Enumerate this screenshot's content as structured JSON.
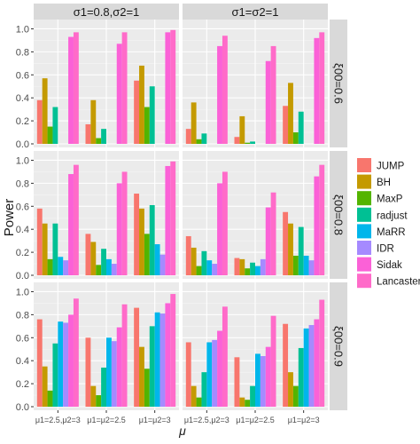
{
  "chart_data": {
    "type": "bar",
    "layout": "facet-grid",
    "ylabel": "Power",
    "xlabel": "μ",
    "categories": [
      "μ1=2.5,μ2=3",
      "μ1=μ2=2.5",
      "μ1=μ2=3"
    ],
    "y_ticks": [
      "0.0",
      "0.2",
      "0.4",
      "0.6",
      "0.8",
      "1.0"
    ],
    "ylim": [
      0,
      1.05
    ],
    "grid": true,
    "legend_position": "right",
    "col_strips": [
      "σ1=0.8,σ2=1",
      "σ1=σ2=1"
    ],
    "row_strips": [
      "ξ00=0.6",
      "ξ00=0.8",
      "ξ00=0.9"
    ],
    "methods": [
      {
        "name": "JUMP",
        "color": "#F8766D"
      },
      {
        "name": "BH",
        "color": "#C49A00"
      },
      {
        "name": "MaxP",
        "color": "#53B400"
      },
      {
        "name": "radjust",
        "color": "#00C094"
      },
      {
        "name": "MaRR",
        "color": "#00B6EB"
      },
      {
        "name": "IDR",
        "color": "#A58AFF"
      },
      {
        "name": "Sidak",
        "color": "#FB61D7"
      },
      {
        "name": "Lancaster",
        "color": "#FF6BC9"
      }
    ],
    "panels": [
      {
        "row": "ξ00=0.6",
        "col": "σ1=0.8,σ2=1",
        "values": [
          [
            0.38,
            0.57,
            0.15,
            0.32,
            0.0,
            0.0,
            0.93,
            0.97
          ],
          [
            0.17,
            0.38,
            0.05,
            0.13,
            0.0,
            0.0,
            0.87,
            0.97
          ],
          [
            0.55,
            0.68,
            0.32,
            0.5,
            0.0,
            0.0,
            0.97,
            0.99
          ]
        ]
      },
      {
        "row": "ξ00=0.6",
        "col": "σ1=σ2=1",
        "values": [
          [
            0.13,
            0.36,
            0.04,
            0.09,
            0.0,
            0.0,
            0.85,
            0.94
          ],
          [
            0.06,
            0.24,
            0.01,
            0.02,
            0.0,
            0.0,
            0.72,
            0.85
          ],
          [
            0.33,
            0.53,
            0.1,
            0.28,
            0.0,
            0.0,
            0.92,
            0.97
          ]
        ]
      },
      {
        "row": "ξ00=0.8",
        "col": "σ1=0.8,σ2=1",
        "values": [
          [
            0.58,
            0.45,
            0.14,
            0.45,
            0.16,
            0.13,
            0.88,
            0.96
          ],
          [
            0.36,
            0.29,
            0.09,
            0.23,
            0.14,
            0.1,
            0.8,
            0.9
          ],
          [
            0.71,
            0.58,
            0.36,
            0.61,
            0.27,
            0.18,
            0.95,
            0.99
          ]
        ]
      },
      {
        "row": "ξ00=0.8",
        "col": "σ1=σ2=1",
        "values": [
          [
            0.34,
            0.24,
            0.08,
            0.21,
            0.13,
            0.1,
            0.8,
            0.9
          ],
          [
            0.15,
            0.14,
            0.06,
            0.11,
            0.08,
            0.14,
            0.59,
            0.72
          ],
          [
            0.55,
            0.45,
            0.17,
            0.42,
            0.17,
            0.13,
            0.86,
            0.96
          ]
        ]
      },
      {
        "row": "ξ00=0.9",
        "col": "σ1=0.8,σ2=1",
        "values": [
          [
            0.76,
            0.35,
            0.14,
            0.55,
            0.74,
            0.73,
            0.8,
            0.94
          ],
          [
            0.6,
            0.18,
            0.1,
            0.34,
            0.6,
            0.57,
            0.69,
            0.89
          ],
          [
            0.86,
            0.52,
            0.33,
            0.7,
            0.82,
            0.81,
            0.9,
            0.98
          ]
        ]
      },
      {
        "row": "ξ00=0.9",
        "col": "σ1=σ2=1",
        "values": [
          [
            0.56,
            0.18,
            0.08,
            0.3,
            0.56,
            0.58,
            0.66,
            0.87
          ],
          [
            0.43,
            0.08,
            0.06,
            0.18,
            0.46,
            0.44,
            0.52,
            0.79
          ],
          [
            0.72,
            0.3,
            0.18,
            0.51,
            0.68,
            0.71,
            0.76,
            0.93
          ]
        ]
      }
    ]
  }
}
